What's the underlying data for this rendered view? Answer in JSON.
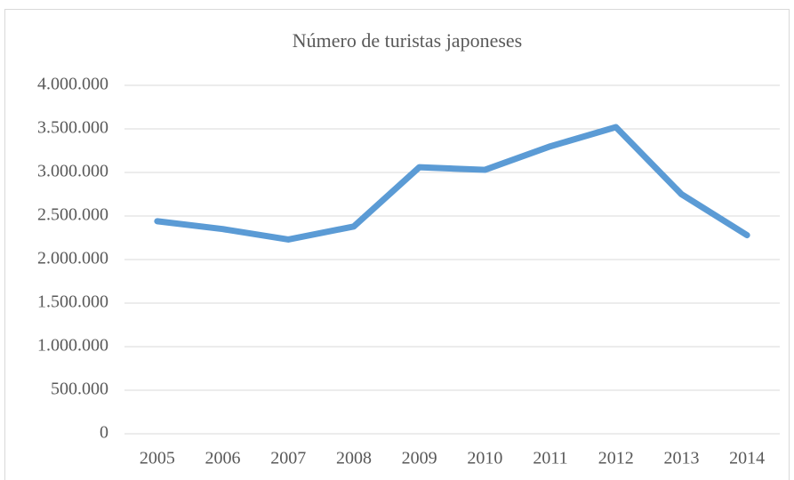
{
  "chart_data": {
    "type": "line",
    "title": "Número de turistas japoneses",
    "categories": [
      "2005",
      "2006",
      "2007",
      "2008",
      "2009",
      "2010",
      "2011",
      "2012",
      "2013",
      "2014"
    ],
    "series": [
      {
        "name": "Número de turistas japoneses",
        "color": "#5b9bd5",
        "values": [
          2440000,
          2350000,
          2230000,
          2380000,
          3060000,
          3030000,
          3300000,
          3520000,
          2750000,
          2280000
        ]
      }
    ],
    "ylim": [
      0,
      4000000
    ],
    "yticks": [
      0,
      {
        "value": 500000,
        "label": "500.000"
      },
      {
        "value": 1000000,
        "label": "1.000.000"
      },
      {
        "value": 1500000,
        "label": "1.500.000"
      },
      {
        "value": 2000000,
        "label": "2.000.000"
      },
      {
        "value": 2500000,
        "label": "2.500.000"
      },
      {
        "value": 3000000,
        "label": "3.000.000"
      },
      {
        "value": 3500000,
        "label": "3.500.000"
      },
      {
        "value": 4000000,
        "label": "4.000.000"
      }
    ],
    "grid": true
  }
}
